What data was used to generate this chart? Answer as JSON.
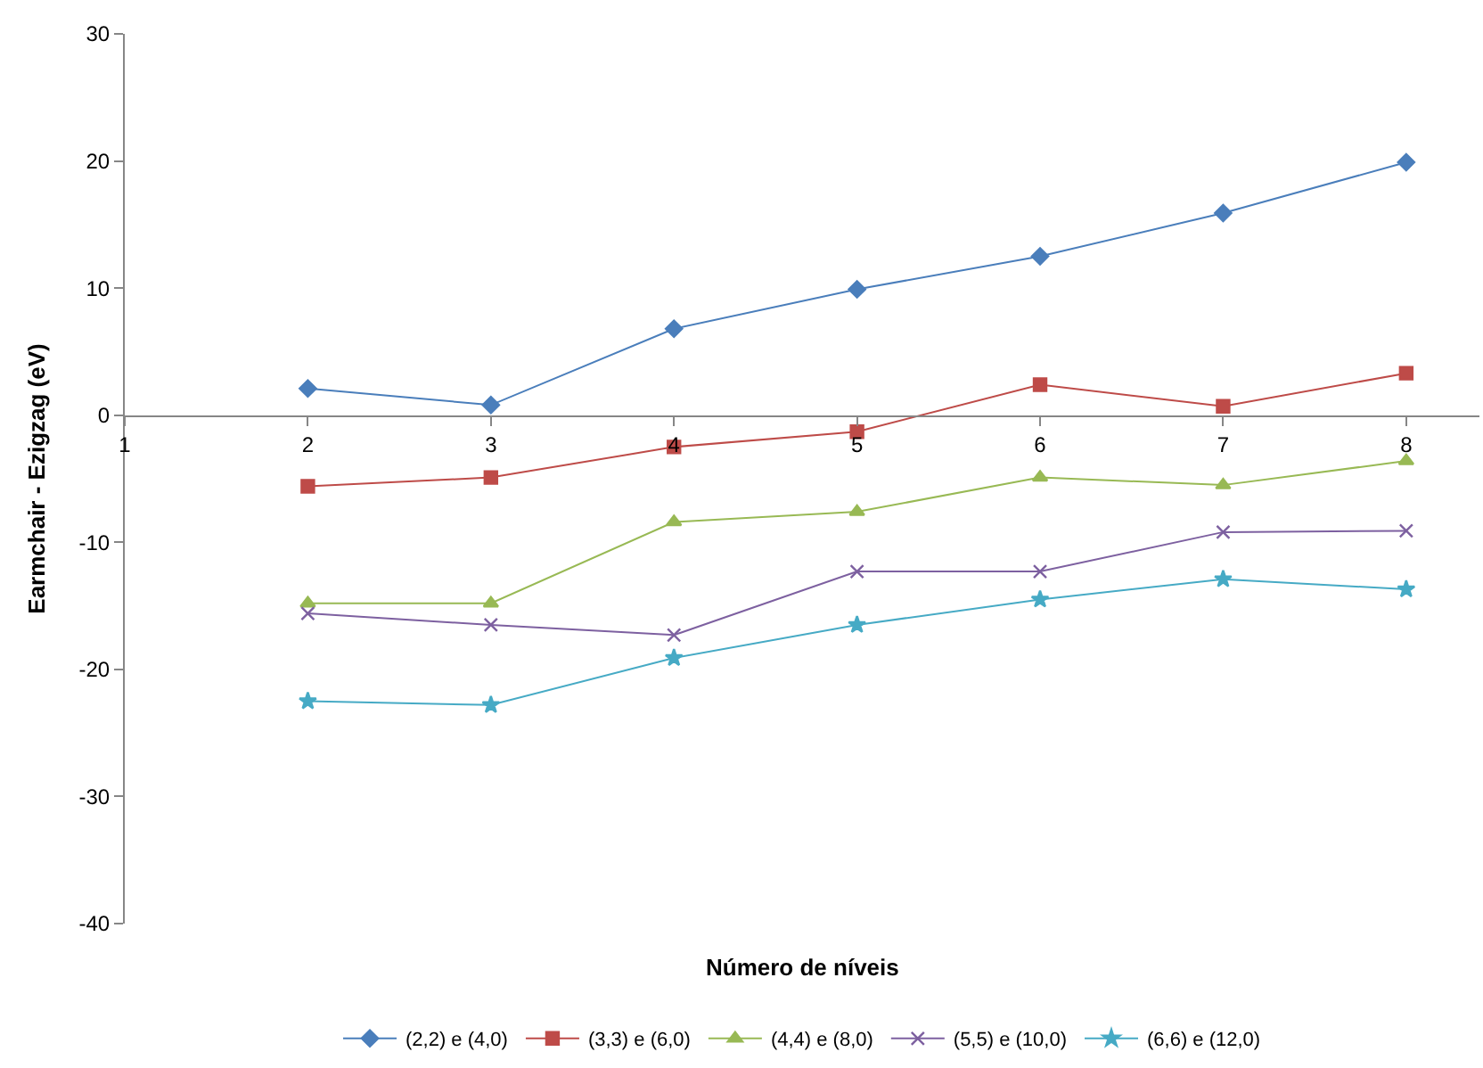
{
  "chart_data": {
    "type": "line",
    "xlabel": "Número de níveis",
    "ylabel": "Earmchair - Ezigzag (eV)",
    "x": [
      2,
      3,
      4,
      5,
      6,
      7,
      8
    ],
    "xlim": [
      1,
      8.4
    ],
    "xticks": [
      1,
      2,
      3,
      4,
      5,
      6,
      7,
      8
    ],
    "ylim": [
      -40,
      30
    ],
    "yticks": [
      -40,
      -30,
      -20,
      -10,
      0,
      10,
      20,
      30
    ],
    "legend": "bottom",
    "series": [
      {
        "name": "(2,2) e (4,0)",
        "color": "#4a7ebb",
        "marker": "diamond",
        "values": [
          2.1,
          0.8,
          6.8,
          9.9,
          12.5,
          15.9,
          19.9
        ]
      },
      {
        "name": "(3,3) e (6,0)",
        "color": "#be4b48",
        "marker": "square",
        "values": [
          -5.6,
          -4.9,
          -2.5,
          -1.3,
          2.4,
          0.7,
          3.3
        ]
      },
      {
        "name": "(4,4) e (8,0)",
        "color": "#98b954",
        "marker": "triangle",
        "values": [
          -14.8,
          -14.8,
          -8.4,
          -7.6,
          -4.9,
          -5.5,
          -3.6
        ]
      },
      {
        "name": "(5,5) e (10,0)",
        "color": "#7d60a0",
        "marker": "cross",
        "values": [
          -15.6,
          -16.5,
          -17.3,
          -12.3,
          -12.3,
          -9.2,
          -9.1
        ]
      },
      {
        "name": "(6,6) e (12,0)",
        "color": "#46aac5",
        "marker": "star",
        "values": [
          -22.5,
          -22.8,
          -19.1,
          -16.5,
          -14.5,
          -12.9,
          -13.7
        ]
      }
    ]
  }
}
